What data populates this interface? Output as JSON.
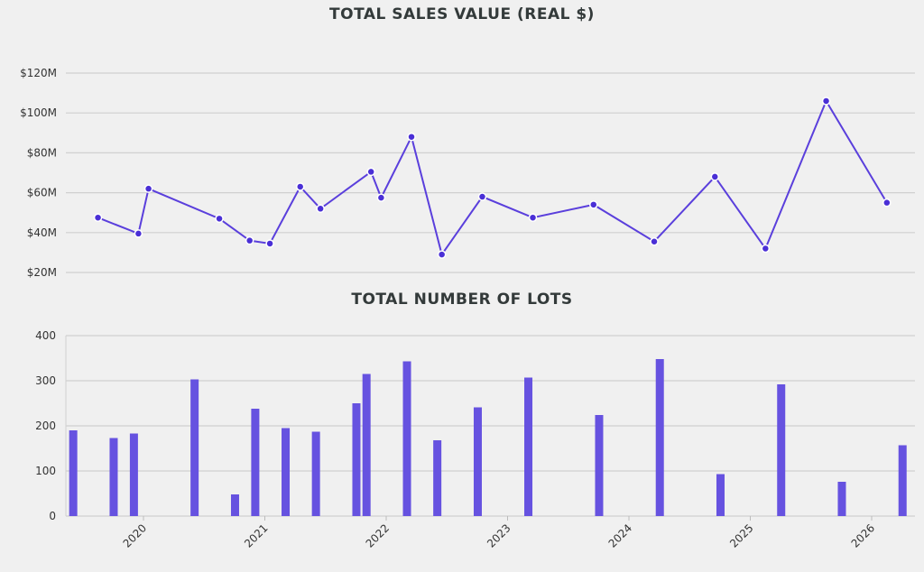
{
  "chart_data": [
    {
      "type": "line",
      "title": "TOTAL SALES VALUE (REAL $)",
      "xlabel": "",
      "ylabel": "",
      "ylim": [
        20,
        120
      ],
      "yticks": [
        20,
        40,
        60,
        80,
        100,
        120
      ],
      "ytick_labels": [
        "$20M",
        "$40M",
        "$60M",
        "$80M",
        "$100M",
        "$120M"
      ],
      "grid": true,
      "color": "#5a3fdc",
      "x": [
        "2019-08",
        "2019-12",
        "2020-01",
        "2020-08",
        "2020-11",
        "2021-01",
        "2021-04",
        "2021-06",
        "2021-11",
        "2021-12",
        "2022-03",
        "2022-06",
        "2022-10",
        "2023-03",
        "2023-09",
        "2024-03",
        "2024-09",
        "2025-02",
        "2025-08",
        "2026-02"
      ],
      "values": [
        47.5,
        39.5,
        62,
        47,
        36,
        34.5,
        63,
        52,
        70.5,
        57.5,
        88,
        29,
        58,
        47.5,
        54,
        35.5,
        68,
        32,
        106,
        55
      ]
    },
    {
      "type": "bar",
      "title": "TOTAL NUMBER OF LOTS",
      "xlabel": "",
      "ylabel": "",
      "ylim": [
        0,
        400
      ],
      "yticks": [
        0,
        100,
        200,
        300,
        400
      ],
      "ytick_labels": [
        "0",
        "100",
        "200",
        "300",
        "400"
      ],
      "xticks": [
        "2020",
        "2021",
        "2022",
        "2023",
        "2024",
        "2025",
        "2026"
      ],
      "grid": true,
      "color": "#6652e0",
      "x": [
        "2019-06",
        "2019-10",
        "2019-12",
        "2020-06",
        "2020-10",
        "2020-12",
        "2021-03",
        "2021-06",
        "2021-10",
        "2021-11",
        "2022-03",
        "2022-06",
        "2022-10",
        "2023-03",
        "2023-10",
        "2024-04",
        "2024-10",
        "2025-04",
        "2025-10",
        "2026-04"
      ],
      "values": [
        190,
        173,
        183,
        303,
        48,
        238,
        195,
        187,
        250,
        315,
        343,
        168,
        241,
        307,
        224,
        348,
        93,
        292,
        76,
        157
      ]
    }
  ]
}
